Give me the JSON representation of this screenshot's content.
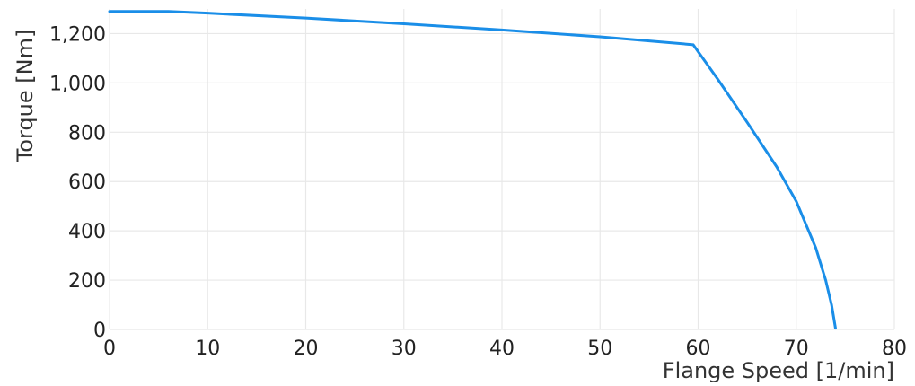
{
  "chart_data": {
    "type": "line",
    "title": "",
    "xlabel": "Flange Speed [1/min]",
    "ylabel": "Torque [Nm]",
    "xlim": [
      0,
      80
    ],
    "ylim": [
      0,
      1300
    ],
    "xticks": [
      0,
      10,
      20,
      30,
      40,
      50,
      60,
      70,
      80
    ],
    "yticks": [
      0,
      200,
      400,
      600,
      800,
      1000,
      1200
    ],
    "xtick_labels": [
      "0",
      "10",
      "20",
      "30",
      "40",
      "50",
      "60",
      "70",
      "80"
    ],
    "ytick_labels": [
      "0",
      "200",
      "400",
      "600",
      "800",
      "1,000",
      "1,200"
    ],
    "grid": true,
    "legend": "none",
    "series": [
      {
        "color": "#1a8ee8",
        "x": [
          0,
          6,
          10,
          20,
          30,
          40,
          50,
          59.5,
          62,
          65,
          68,
          70,
          72,
          73,
          73.6,
          74
        ],
        "y": [
          1290,
          1290,
          1283,
          1263,
          1240,
          1215,
          1187,
          1155,
          1015,
          840,
          660,
          520,
          330,
          200,
          100,
          5
        ]
      }
    ]
  }
}
